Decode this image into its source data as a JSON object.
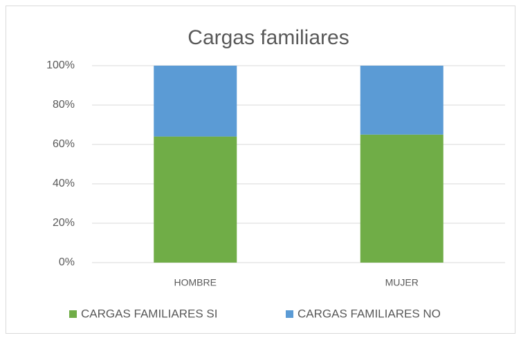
{
  "chart_data": {
    "type": "bar",
    "stacked": true,
    "title": "Cargas familiares",
    "categories": [
      "HOMBRE",
      "MUJER"
    ],
    "series": [
      {
        "name": "CARGAS FAMILIARES SI",
        "color": "#70ad47",
        "values": [
          64,
          65
        ]
      },
      {
        "name": "CARGAS FAMILIARES NO",
        "color": "#5b9bd5",
        "values": [
          36,
          35
        ]
      }
    ],
    "ylim": [
      0,
      100
    ],
    "yticks": [
      {
        "value": 0,
        "label": "0%"
      },
      {
        "value": 20,
        "label": "20%"
      },
      {
        "value": 40,
        "label": "40%"
      },
      {
        "value": 60,
        "label": "60%"
      },
      {
        "value": 80,
        "label": "80%"
      },
      {
        "value": 100,
        "label": "100%"
      }
    ],
    "grid": true,
    "legend": "bottom"
  }
}
